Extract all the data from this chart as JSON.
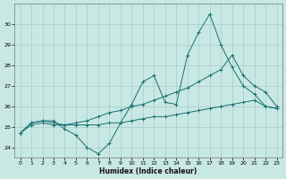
{
  "xlabel": "Humidex (Indice chaleur)",
  "bg_color": "#c8e8e4",
  "grid_color": "#a8cccc",
  "line_color": "#1a7070",
  "x": [
    0,
    1,
    2,
    3,
    4,
    5,
    6,
    7,
    8,
    9,
    10,
    11,
    12,
    13,
    14,
    15,
    16,
    17,
    18,
    19,
    20,
    21,
    22,
    23
  ],
  "line1": [
    24.7,
    25.2,
    25.3,
    25.3,
    24.9,
    24.6,
    24.0,
    23.7,
    24.2,
    25.2,
    26.1,
    27.2,
    27.5,
    26.2,
    26.1,
    28.5,
    29.6,
    30.5,
    29.0,
    27.9,
    27.0,
    26.6,
    26.0,
    25.9
  ],
  "line2": [
    24.7,
    25.2,
    25.3,
    25.2,
    25.1,
    25.2,
    25.3,
    25.5,
    25.7,
    25.8,
    26.0,
    26.1,
    26.3,
    26.5,
    26.7,
    26.9,
    27.2,
    27.5,
    27.8,
    28.5,
    27.5,
    27.0,
    26.7,
    26.0
  ],
  "line3": [
    24.7,
    25.1,
    25.2,
    25.1,
    25.1,
    25.1,
    25.1,
    25.1,
    25.2,
    25.2,
    25.3,
    25.4,
    25.5,
    25.5,
    25.6,
    25.7,
    25.8,
    25.9,
    26.0,
    26.1,
    26.2,
    26.3,
    26.0,
    25.9
  ],
  "ylim": [
    23.5,
    31.0
  ],
  "yticks": [
    24,
    25,
    26,
    27,
    28,
    29,
    30
  ],
  "xlim": [
    -0.5,
    23.5
  ],
  "xticks": [
    0,
    1,
    2,
    3,
    4,
    5,
    6,
    7,
    8,
    9,
    10,
    11,
    12,
    13,
    14,
    15,
    16,
    17,
    18,
    19,
    20,
    21,
    22,
    23
  ]
}
